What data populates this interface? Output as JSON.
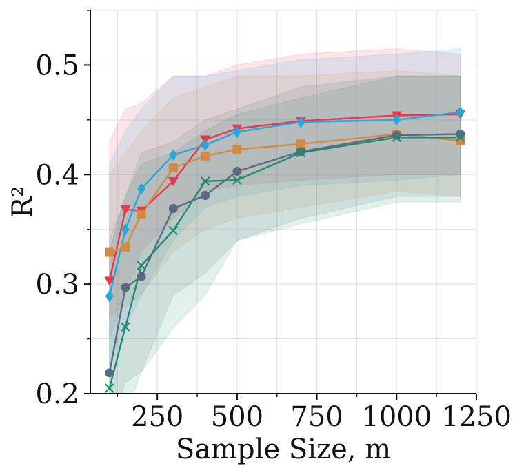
{
  "chart_data": {
    "type": "line",
    "xlabel": "Sample Size, m",
    "ylabel": "R²",
    "xlim": [
      40,
      1250
    ],
    "ylim": [
      0.2,
      0.55
    ],
    "xticks": [
      "250",
      "500",
      "750",
      "1000",
      "1250"
    ],
    "yticks": [
      "0.2",
      "0.3",
      "0.4",
      "0.5"
    ],
    "grid": true,
    "legend": "none",
    "x": [
      100,
      150,
      200,
      300,
      400,
      500,
      700,
      1000,
      1200
    ],
    "series": [
      {
        "color": "#e8384f",
        "marker": "triangle-down",
        "values": [
          0.303,
          0.368,
          0.367,
          0.394,
          0.432,
          0.442,
          0.449,
          0.454,
          0.455
        ],
        "lower": [
          0.25,
          0.29,
          0.33,
          0.36,
          0.385,
          0.39,
          0.395,
          0.4,
          0.4
        ],
        "upper": [
          0.43,
          0.46,
          0.465,
          0.49,
          0.49,
          0.5,
          0.51,
          0.515,
          0.51
        ]
      },
      {
        "color": "#2aa6d8",
        "marker": "diamond",
        "values": [
          0.289,
          0.35,
          0.387,
          0.418,
          0.427,
          0.439,
          0.448,
          0.45,
          0.457
        ],
        "lower": [
          0.22,
          0.26,
          0.29,
          0.34,
          0.37,
          0.38,
          0.39,
          0.395,
          0.4
        ],
        "upper": [
          0.41,
          0.44,
          0.46,
          0.49,
          0.49,
          0.495,
          0.505,
          0.51,
          0.515
        ]
      },
      {
        "color": "#d38b44",
        "marker": "square",
        "values": [
          0.329,
          0.334,
          0.364,
          0.406,
          0.417,
          0.423,
          0.428,
          0.437,
          0.431
        ],
        "lower": [
          0.27,
          0.28,
          0.29,
          0.33,
          0.35,
          0.36,
          0.37,
          0.385,
          0.38
        ],
        "upper": [
          0.4,
          0.42,
          0.44,
          0.47,
          0.48,
          0.49,
          0.49,
          0.495,
          0.49
        ]
      },
      {
        "color": "#5a6a80",
        "marker": "circle",
        "values": [
          0.219,
          0.297,
          0.307,
          0.369,
          0.381,
          0.403,
          0.421,
          0.436,
          0.437
        ],
        "lower": [
          0.17,
          0.21,
          0.22,
          0.29,
          0.31,
          0.34,
          0.36,
          0.38,
          0.38
        ],
        "upper": [
          0.34,
          0.38,
          0.42,
          0.43,
          0.45,
          0.46,
          0.48,
          0.49,
          0.49
        ]
      },
      {
        "color": "#1f8c6e",
        "marker": "x",
        "values": [
          0.205,
          0.261,
          0.317,
          0.349,
          0.394,
          0.395,
          0.42,
          0.434,
          0.434
        ],
        "lower": [
          0.15,
          0.18,
          0.22,
          0.26,
          0.29,
          0.34,
          0.355,
          0.375,
          0.375
        ],
        "upper": [
          0.33,
          0.38,
          0.41,
          0.42,
          0.44,
          0.455,
          0.47,
          0.49,
          0.49
        ]
      }
    ]
  }
}
